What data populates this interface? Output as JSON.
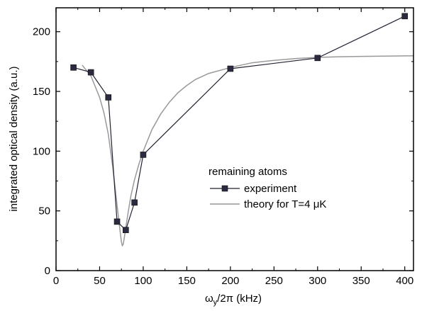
{
  "chart_data": {
    "type": "line",
    "xlabel": "ω",
    "xlabel_sub": "y",
    "xlabel_rest": "/2π (kHz)",
    "ylabel": "integrated optical density (a.u.)",
    "xlim": [
      0,
      410
    ],
    "ylim": [
      0,
      220
    ],
    "xticks": [
      0,
      50,
      100,
      150,
      200,
      250,
      300,
      350,
      400
    ],
    "yticks": [
      0,
      50,
      100,
      150,
      200
    ],
    "grid": false,
    "legend": {
      "title": "remaining atoms",
      "placement": "center-right"
    },
    "series": [
      {
        "name": "experiment",
        "style": "line-square-markers",
        "color": "#222233",
        "x": [
          20,
          40,
          60,
          70,
          80,
          90,
          100,
          200,
          300,
          400
        ],
        "y": [
          170,
          166,
          145,
          41,
          34,
          57,
          97,
          169,
          178,
          213
        ]
      },
      {
        "name": "theory for T=4 μK",
        "style": "line",
        "color": "#999999",
        "x": [
          30,
          40,
          50,
          55,
          60,
          65,
          68,
          70,
          72,
          74,
          75,
          76,
          77,
          78,
          80,
          83,
          86,
          90,
          95,
          100,
          110,
          120,
          130,
          140,
          150,
          160,
          175,
          200,
          225,
          250,
          275,
          300,
          325,
          350,
          375,
          410
        ],
        "y": [
          172,
          163,
          145,
          132,
          114,
          87,
          68,
          55,
          42,
          30,
          24,
          21,
          22,
          26,
          36,
          50,
          63,
          76,
          89,
          100,
          118,
          131,
          141,
          149,
          155,
          160,
          165,
          170,
          174,
          176,
          177.5,
          178.5,
          179,
          179.3,
          179.5,
          179.8
        ]
      }
    ]
  }
}
